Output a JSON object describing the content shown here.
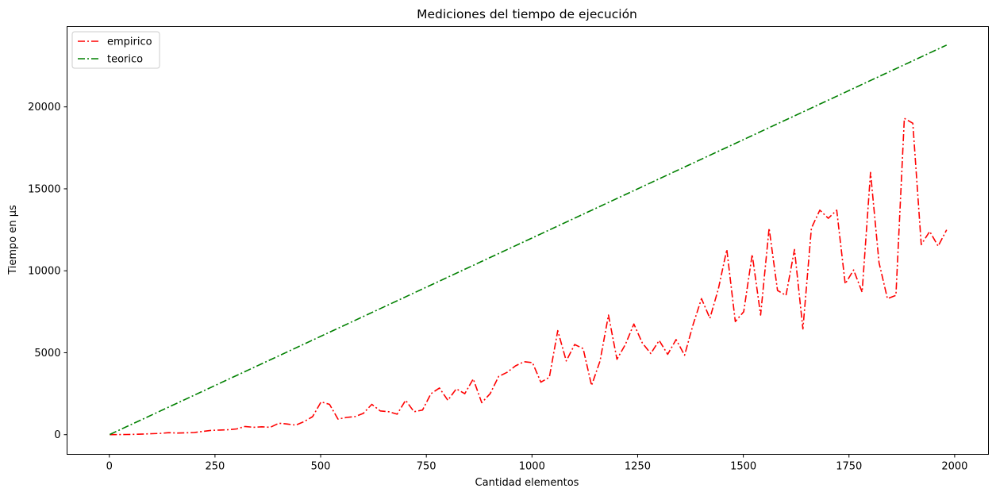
{
  "chart_data": {
    "type": "line",
    "title": "Mediciones del tiempo de ejecución",
    "xlabel": "Cantidad elementos",
    "ylabel": "Tiempo en µs",
    "xlim": [
      -100,
      2080
    ],
    "ylim": [
      -1200,
      24900
    ],
    "xticks": [
      0,
      250,
      500,
      750,
      1000,
      1250,
      1500,
      1750,
      2000
    ],
    "yticks": [
      0,
      5000,
      10000,
      15000,
      20000
    ],
    "legend_position": "top-left",
    "grid": false,
    "series": [
      {
        "name": "empirico",
        "color": "#ff0000",
        "linestyle": "dashdot",
        "x": [
          1,
          21,
          41,
          61,
          81,
          101,
          121,
          141,
          161,
          181,
          201,
          221,
          241,
          261,
          281,
          301,
          321,
          341,
          361,
          381,
          401,
          421,
          441,
          461,
          481,
          501,
          521,
          541,
          561,
          581,
          601,
          621,
          641,
          661,
          681,
          701,
          721,
          741,
          761,
          781,
          801,
          821,
          841,
          861,
          881,
          901,
          921,
          941,
          961,
          981,
          1001,
          1021,
          1041,
          1061,
          1081,
          1101,
          1121,
          1141,
          1161,
          1181,
          1201,
          1221,
          1241,
          1261,
          1281,
          1301,
          1321,
          1341,
          1361,
          1381,
          1401,
          1421,
          1441,
          1461,
          1481,
          1501,
          1521,
          1541,
          1561,
          1581,
          1601,
          1621,
          1641,
          1661,
          1681,
          1701,
          1721,
          1741,
          1761,
          1781,
          1801,
          1821,
          1841,
          1861,
          1881,
          1901,
          1921,
          1941,
          1961,
          1981
        ],
        "y": [
          0,
          5,
          10,
          20,
          40,
          60,
          80,
          120,
          100,
          110,
          130,
          200,
          260,
          280,
          300,
          350,
          500,
          450,
          480,
          450,
          700,
          650,
          580,
          800,
          1100,
          2000,
          1850,
          950,
          1050,
          1100,
          1300,
          1850,
          1450,
          1400,
          1250,
          2100,
          1400,
          1500,
          2500,
          2850,
          2100,
          2800,
          2500,
          3400,
          1950,
          2500,
          3550,
          3800,
          4200,
          4450,
          4400,
          3200,
          3500,
          6350,
          4500,
          5500,
          5250,
          3000,
          4500,
          7300,
          4600,
          5500,
          6750,
          5600,
          4950,
          5750,
          4900,
          5800,
          4850,
          6700,
          8300,
          7100,
          8900,
          11300,
          6900,
          7500,
          11000,
          7300,
          12600,
          8800,
          8500,
          11300,
          6450,
          12600,
          13700,
          13200,
          13700,
          9200,
          10050,
          8700,
          16000,
          10500,
          8300,
          8500,
          19300,
          19000,
          11600,
          12400,
          11500,
          12500
        ]
      },
      {
        "name": "teorico",
        "color": "#008000",
        "linestyle": "dashdot",
        "x": [
          1,
          1981
        ],
        "y": [
          12,
          23772
        ]
      }
    ]
  }
}
